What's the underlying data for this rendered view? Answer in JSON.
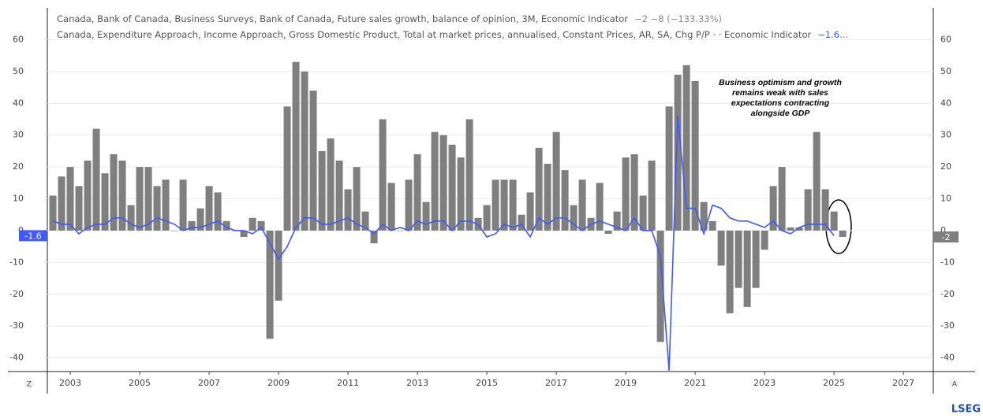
{
  "chart_data": {
    "type": "bar-line",
    "legend": [
      {
        "name": "Canada, Bank of Canada, Business Surveys, Bank of Canada, Future sales growth, balance of opinion, 3M, Economic Indicator",
        "text": "−2  −8 (−133.33%)"
      },
      {
        "name": "Canada, Expenditure Approach, Income Approach, Gross Domestic Product, Total at market prices, annualised, Constant Prices, AR, SA, Chg P/P · · Economic Indicator",
        "text": "−1.6..."
      }
    ],
    "annotation": [
      "Business optimism and growth",
      "remains weak with sales",
      "expectations contracting",
      "alongside GDP"
    ],
    "x": [
      2002.5,
      2002.75,
      2003,
      2003.25,
      2003.5,
      2003.75,
      2004,
      2004.25,
      2004.5,
      2004.75,
      2005,
      2005.25,
      2005.5,
      2005.75,
      2006,
      2006.25,
      2006.5,
      2006.75,
      2007,
      2007.25,
      2007.5,
      2007.75,
      2008,
      2008.25,
      2008.5,
      2008.75,
      2009,
      2009.25,
      2009.5,
      2009.75,
      2010,
      2010.25,
      2010.5,
      2010.75,
      2011,
      2011.25,
      2011.5,
      2011.75,
      2012,
      2012.25,
      2012.5,
      2012.75,
      2013,
      2013.25,
      2013.5,
      2013.75,
      2014,
      2014.25,
      2014.5,
      2014.75,
      2015,
      2015.25,
      2015.5,
      2015.75,
      2016,
      2016.25,
      2016.5,
      2016.75,
      2017,
      2017.25,
      2017.5,
      2017.75,
      2018,
      2018.25,
      2018.5,
      2018.75,
      2019,
      2019.25,
      2019.5,
      2019.75,
      2020,
      2020.25,
      2020.5,
      2020.75,
      2021,
      2021.25,
      2021.5,
      2021.75,
      2022,
      2022.25,
      2022.5,
      2022.75,
      2023,
      2023.25,
      2023.5,
      2023.75,
      2024,
      2024.25,
      2024.5,
      2024.75,
      2025,
      2025.25
    ],
    "series": [
      {
        "name": "Future sales growth",
        "type": "bar",
        "color": "#7f7f7f",
        "current_value": -2,
        "values": [
          11,
          17,
          20,
          14,
          22,
          32,
          18,
          24,
          22,
          8,
          20,
          20,
          14,
          16,
          0,
          16,
          3,
          7,
          14,
          12,
          3,
          0,
          -2,
          4,
          3,
          -34,
          -22,
          39,
          53,
          50,
          44,
          25,
          29,
          22,
          13,
          20,
          6,
          -4,
          35,
          15,
          0,
          16,
          24,
          9,
          31,
          30,
          27,
          23,
          35,
          4,
          8,
          16,
          16,
          16,
          5,
          12,
          26,
          21,
          31,
          19,
          8,
          16,
          4,
          15,
          -1,
          6,
          23,
          24,
          11,
          22,
          -35,
          39,
          49,
          52,
          47,
          9,
          3,
          -11,
          -26,
          -18,
          -24,
          -18,
          -6,
          14,
          20,
          1,
          1,
          13,
          31,
          13,
          6,
          -2
        ]
      },
      {
        "name": "GDP growth",
        "type": "line",
        "color": "#3f5af5",
        "current_value": -1.6,
        "values": [
          3,
          2,
          2,
          -1,
          1,
          2,
          2,
          4,
          4,
          2,
          1,
          2,
          4,
          3,
          2,
          0,
          1,
          1,
          2,
          3,
          1,
          0,
          0,
          -1,
          1,
          -4,
          -9,
          -5,
          1,
          4,
          4,
          2,
          2,
          3,
          4,
          2,
          1,
          -1,
          2,
          0,
          1,
          0,
          3,
          2,
          3,
          3,
          0,
          3,
          3,
          2,
          -2,
          -1,
          2,
          1,
          2,
          -2,
          4,
          2,
          4,
          4,
          2,
          0,
          2,
          3,
          2,
          1,
          0,
          4,
          0,
          0,
          -8,
          -44,
          36,
          7,
          7,
          -1,
          8,
          7,
          4,
          3,
          3,
          2,
          1,
          3,
          0,
          -1,
          1,
          2,
          2,
          2,
          -1.6,
          null
        ]
      }
    ],
    "xlim": [
      2002.34,
      2027.86
    ],
    "xticks": [
      2003,
      2005,
      2007,
      2009,
      2011,
      2013,
      2015,
      2017,
      2019,
      2021,
      2023,
      2025,
      2027
    ],
    "ylim": [
      -44.3,
      70
    ],
    "yticks": [
      -40,
      -30,
      -20,
      -10,
      0,
      10,
      20,
      30,
      40,
      50,
      60
    ],
    "x_axis_buttons": [
      "Z",
      "A"
    ],
    "logo": "LSEG"
  }
}
